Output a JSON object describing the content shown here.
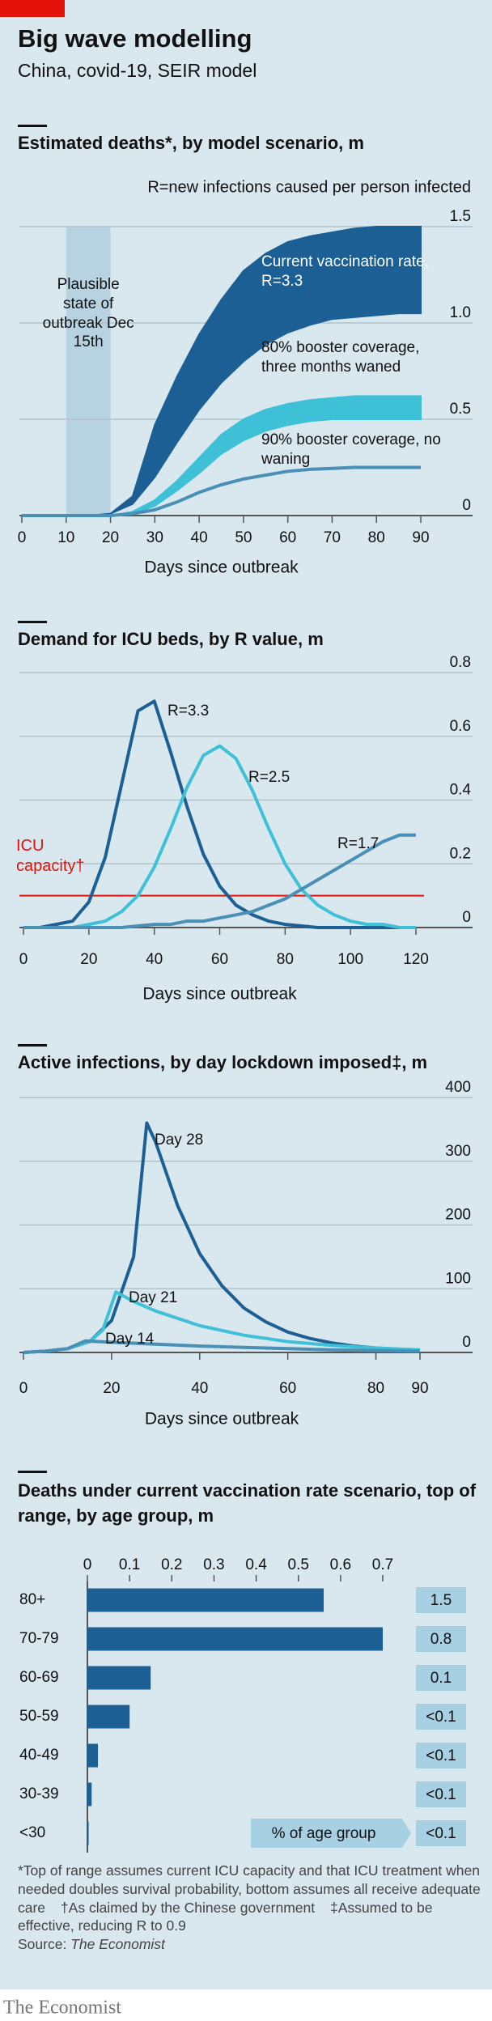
{
  "header": {
    "title": "Big wave modelling",
    "subtitle": "China, covid-19, SEIR model"
  },
  "chart_data": [
    {
      "type": "area",
      "title": "Estimated deaths*, by model scenario, m",
      "annotation": "R=new infections caused per person infected",
      "xlabel": "Days since outbreak",
      "x": [
        0,
        5,
        10,
        15,
        20,
        25,
        30,
        35,
        40,
        45,
        50,
        55,
        60,
        65,
        70,
        75,
        80,
        85,
        90
      ],
      "xlim": [
        0,
        90
      ],
      "xticks": [
        0,
        10,
        20,
        30,
        40,
        50,
        60,
        70,
        80,
        90
      ],
      "ylim": [
        0,
        1.5
      ],
      "yticks": [
        0,
        0.5,
        {
          "value": 1,
          "label": "1.0"
        },
        1.5
      ],
      "grid": true,
      "shade": {
        "range": [
          10,
          20
        ],
        "label": "Plausible state of outbreak Dec 15th",
        "color": "#b7d3e2"
      },
      "series": [
        {
          "name": "Current vaccination rate, R=3.3",
          "color": "#1c5f95",
          "values": [
            0,
            0,
            0,
            0,
            0.01,
            0.1,
            0.47,
            0.72,
            0.94,
            1.12,
            1.27,
            1.36,
            1.42,
            1.45,
            1.47,
            1.49,
            1.5,
            1.5,
            1.5
          ],
          "lower": [
            0,
            0,
            0,
            0,
            0.01,
            0.06,
            0.2,
            0.38,
            0.55,
            0.69,
            0.8,
            0.89,
            0.95,
            0.99,
            1.02,
            1.03,
            1.04,
            1.05,
            1.05
          ]
        },
        {
          "name": "80% booster coverage, three months waned",
          "color": "#3ec1d6",
          "values": [
            0,
            0,
            0,
            0,
            0,
            0.02,
            0.08,
            0.18,
            0.3,
            0.42,
            0.5,
            0.55,
            0.58,
            0.6,
            0.61,
            0.62,
            0.62,
            0.62,
            0.62
          ],
          "lower": [
            0,
            0,
            0,
            0,
            0,
            0.01,
            0.05,
            0.13,
            0.22,
            0.32,
            0.39,
            0.44,
            0.47,
            0.49,
            0.5,
            0.5,
            0.5,
            0.5,
            0.5
          ]
        },
        {
          "name": "90% booster coverage, no waning",
          "color": "#4a8fb5",
          "values": [
            0,
            0,
            0,
            0,
            0,
            0.01,
            0.03,
            0.07,
            0.12,
            0.16,
            0.19,
            0.21,
            0.23,
            0.24,
            0.245,
            0.25,
            0.25,
            0.25,
            0.25
          ]
        }
      ]
    },
    {
      "type": "line",
      "title": "Demand for ICU beds, by R value, m",
      "xlabel": "Days since outbreak",
      "x": [
        0,
        5,
        10,
        15,
        20,
        25,
        30,
        35,
        40,
        45,
        50,
        55,
        60,
        65,
        70,
        75,
        80,
        85,
        90,
        95,
        100,
        105,
        110,
        115,
        120
      ],
      "xlim": [
        0,
        120
      ],
      "xticks": [
        0,
        20,
        40,
        60,
        80,
        100,
        120
      ],
      "ylim": [
        0,
        0.8
      ],
      "yticks": [
        0,
        0.2,
        0.4,
        0.6,
        0.8
      ],
      "grid": true,
      "reference": {
        "value": 0.1,
        "label": "ICU capacity†",
        "color": "#e3120b"
      },
      "series": [
        {
          "name": "R=3.3",
          "color": "#1c5f95",
          "values": [
            0,
            0,
            0.01,
            0.02,
            0.08,
            0.22,
            0.45,
            0.68,
            0.71,
            0.55,
            0.38,
            0.23,
            0.13,
            0.07,
            0.04,
            0.02,
            0.01,
            0.005,
            0,
            0,
            0,
            0,
            0,
            0,
            0
          ]
        },
        {
          "name": "R=2.5",
          "color": "#3ec1d6",
          "values": [
            0,
            0,
            0,
            0,
            0.01,
            0.02,
            0.05,
            0.1,
            0.19,
            0.31,
            0.44,
            0.54,
            0.57,
            0.53,
            0.43,
            0.31,
            0.2,
            0.12,
            0.07,
            0.04,
            0.02,
            0.01,
            0.01,
            0,
            0
          ]
        },
        {
          "name": "R=1.7",
          "color": "#4a8fb5",
          "values": [
            0,
            0,
            0,
            0,
            0,
            0,
            0,
            0.005,
            0.01,
            0.01,
            0.02,
            0.02,
            0.03,
            0.04,
            0.05,
            0.07,
            0.09,
            0.12,
            0.15,
            0.18,
            0.21,
            0.24,
            0.27,
            0.29,
            0.29
          ]
        }
      ]
    },
    {
      "type": "line",
      "title": "Active infections, by day lockdown imposed‡, m",
      "xlabel": "Days since outbreak",
      "xlim": [
        0,
        90
      ],
      "xticks": [
        0,
        20,
        40,
        60,
        80,
        90
      ],
      "ylim": [
        0,
        400
      ],
      "yticks": [
        0,
        100,
        200,
        300,
        400
      ],
      "grid": true,
      "series": [
        {
          "name": "Day 28",
          "color": "#1c5f95",
          "x": [
            0,
            5,
            10,
            15,
            20,
            25,
            28,
            30,
            35,
            40,
            45,
            50,
            55,
            60,
            65,
            70,
            75,
            80,
            85,
            90
          ],
          "values": [
            0,
            2,
            6,
            17,
            50,
            150,
            360,
            330,
            230,
            155,
            105,
            70,
            48,
            32,
            22,
            15,
            10,
            7,
            5,
            3
          ]
        },
        {
          "name": "Day 21",
          "color": "#3ec1d6",
          "x": [
            0,
            5,
            10,
            15,
            18,
            21,
            25,
            30,
            40,
            50,
            60,
            70,
            80,
            90
          ],
          "values": [
            0,
            2,
            6,
            17,
            35,
            95,
            80,
            65,
            42,
            27,
            17,
            11,
            7,
            4
          ]
        },
        {
          "name": "Day 14",
          "color": "#4a8fb5",
          "x": [
            0,
            5,
            10,
            14,
            20,
            30,
            40,
            50,
            60,
            70,
            80,
            90
          ],
          "values": [
            0,
            2,
            6,
            18,
            16,
            13,
            10,
            8,
            6,
            4,
            3,
            2
          ]
        }
      ]
    },
    {
      "type": "hbar",
      "title": "Deaths under current vaccination rate scenario, top of range, by age group, m",
      "categories": [
        "80+",
        "70-79",
        "60-69",
        "50-59",
        "40-49",
        "30-39",
        "<30"
      ],
      "values": [
        0.56,
        0.7,
        0.15,
        0.1,
        0.025,
        0.01,
        0.003
      ],
      "color": "#1c5f95",
      "xlim": [
        0,
        0.7
      ],
      "xticks": [
        0,
        0.1,
        0.2,
        0.3,
        0.4,
        0.5,
        0.6,
        0.7
      ],
      "side_header": "% of age group",
      "side_labels": [
        "1.5",
        "0.8",
        "0.1",
        "<0.1",
        "<0.1",
        "<0.1",
        "<0.1"
      ]
    }
  ],
  "footer": {
    "notes": [
      "*Top of range assumes current ICU capacity and that ICU treatment when needed doubles survival probability, bottom assumes all receive adequate care",
      "†As claimed by the Chinese government",
      "‡Assumed to be effective, reducing R to 0.9"
    ],
    "source_label": "Source:",
    "source": "The Economist",
    "brand": "The Economist"
  }
}
